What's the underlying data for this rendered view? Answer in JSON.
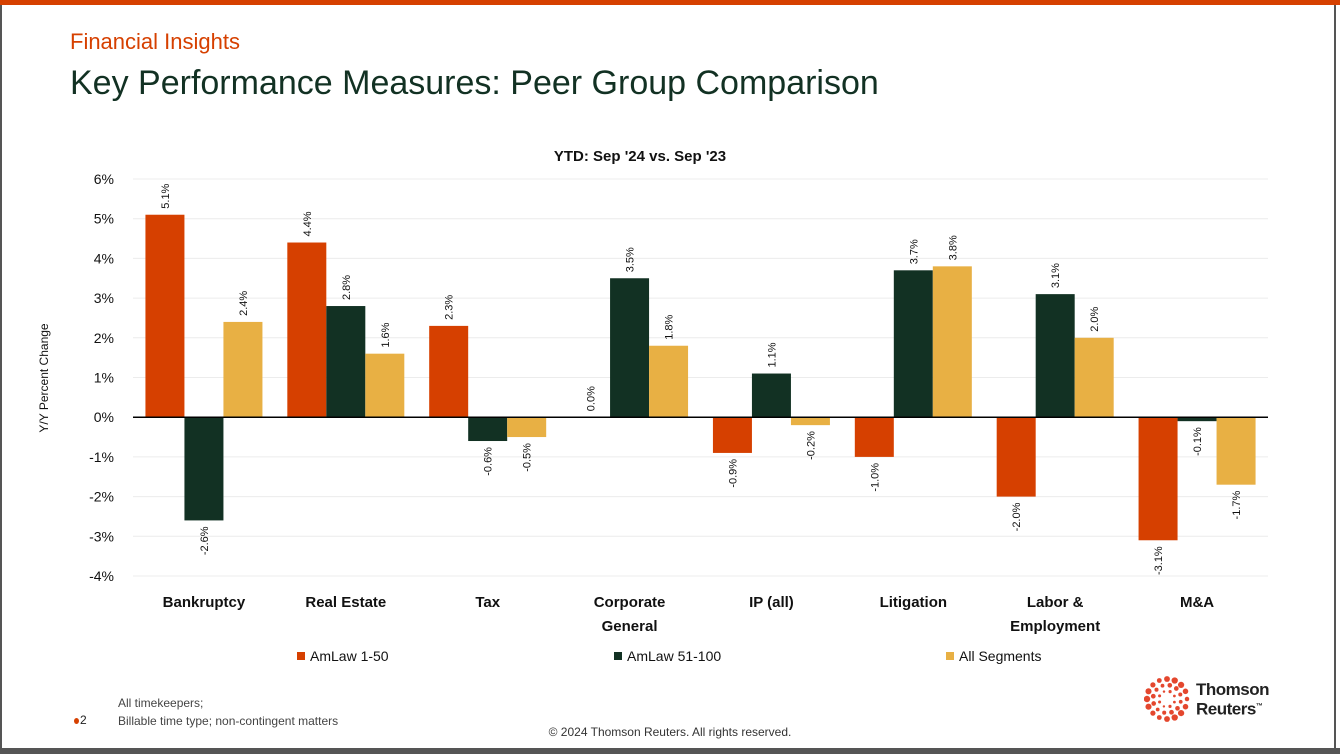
{
  "header": {
    "subtitle": "Financial Insights",
    "title": "Key Performance Measures: Peer Group Comparison"
  },
  "colors": {
    "accent": "#d64000",
    "dark": "#123123",
    "gold": "#e8b044"
  },
  "chart_data": {
    "type": "bar",
    "title": "YTD: Sep '24 vs. Sep '23",
    "ylabel": "Y/Y Percent Change",
    "xlabel": "",
    "ylim": [
      -4,
      6
    ],
    "yticks": [
      "6%",
      "5%",
      "4%",
      "3%",
      "2%",
      "1%",
      "0%",
      "-1%",
      "-2%",
      "-3%",
      "-4%"
    ],
    "grid": true,
    "legend_position": "bottom",
    "categories": [
      [
        "Bankruptcy"
      ],
      [
        "Real Estate"
      ],
      [
        "Tax"
      ],
      [
        "Corporate",
        "General"
      ],
      [
        "IP (all)"
      ],
      [
        "Litigation"
      ],
      [
        "Labor &",
        "Employment"
      ],
      [
        "M&A"
      ]
    ],
    "series": [
      {
        "name": "AmLaw 1-50",
        "color": "#d64000",
        "values": [
          5.1,
          4.4,
          2.3,
          0.0,
          -0.9,
          -1.0,
          -2.0,
          -3.1
        ],
        "labels": [
          "5.1%",
          "4.4%",
          "2.3%",
          "0.0%",
          "-0.9%",
          "-1.0%",
          "-2.0%",
          "-3.1%"
        ]
      },
      {
        "name": "AmLaw 51-100",
        "color": "#123123",
        "values": [
          -2.6,
          2.8,
          -0.6,
          3.5,
          1.1,
          3.7,
          3.1,
          -0.1
        ],
        "labels": [
          "-2.6%",
          "2.8%",
          "-0.6%",
          "3.5%",
          "1.1%",
          "3.7%",
          "3.1%",
          "-0.1%"
        ]
      },
      {
        "name": "All Segments",
        "color": "#e8b044",
        "values": [
          2.4,
          1.6,
          -0.5,
          1.8,
          -0.2,
          3.8,
          2.0,
          -1.7
        ],
        "labels": [
          "2.4%",
          "1.6%",
          "-0.5%",
          "1.8%",
          "-0.2%",
          "3.8%",
          "2.0%",
          "-1.7%"
        ]
      }
    ]
  },
  "footer": {
    "notes": [
      "All timekeepers;",
      "Billable time type; non-contingent matters"
    ],
    "page_number": "2",
    "copyright": "© 2024 Thomson Reuters. All rights reserved.",
    "logo_line1": "Thomson",
    "logo_line2": "Reuters",
    "logo_tm": "™"
  }
}
